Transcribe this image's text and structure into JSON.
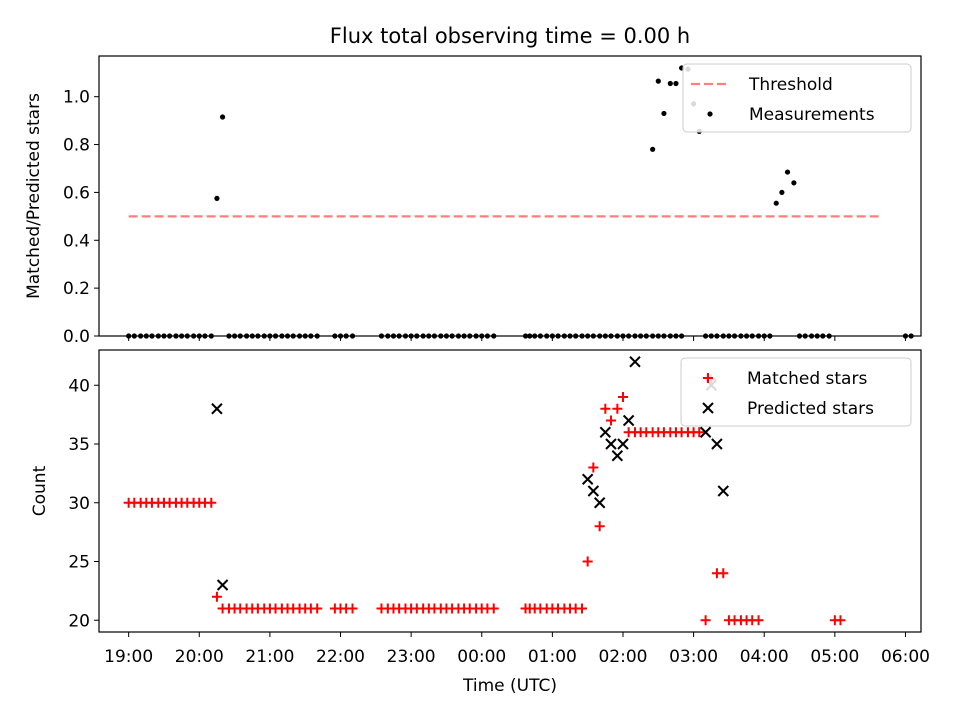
{
  "figure": {
    "title": "Flux total observing time = 0.00 h"
  },
  "chart_data": [
    {
      "type": "scatter",
      "ylabel": "Matched/Predicted stars",
      "xlabel": "",
      "x_ticks": [
        "19:00",
        "20:00",
        "21:00",
        "22:00",
        "23:00",
        "00:00",
        "01:00",
        "02:00",
        "03:00",
        "04:00",
        "05:00",
        "06:00"
      ],
      "xlim": [
        18.58,
        30.22
      ],
      "ylim": [
        0,
        1.17
      ],
      "y_ticks": [
        "0.0",
        "0.2",
        "0.4",
        "0.6",
        "0.8",
        "1.0"
      ],
      "legend": {
        "placement": "top-right",
        "entries": [
          "Threshold",
          "Measurements"
        ]
      },
      "threshold": {
        "name": "Threshold",
        "y": 0.5,
        "x_range": [
          19.0,
          29.67
        ],
        "color": "#ff7f7f",
        "style": "dashed"
      },
      "series": [
        {
          "name": "Measurements",
          "color": "#000000",
          "marker": "dot",
          "points": [
            [
              19.0,
              0
            ],
            [
              19.08,
              0
            ],
            [
              19.17,
              0
            ],
            [
              19.25,
              0
            ],
            [
              19.33,
              0
            ],
            [
              19.42,
              0
            ],
            [
              19.5,
              0
            ],
            [
              19.58,
              0
            ],
            [
              19.67,
              0
            ],
            [
              19.75,
              0
            ],
            [
              19.83,
              0
            ],
            [
              19.92,
              0
            ],
            [
              20.0,
              0
            ],
            [
              20.08,
              0
            ],
            [
              20.17,
              0
            ],
            [
              20.25,
              0.575
            ],
            [
              20.33,
              0.915
            ],
            [
              20.42,
              0
            ],
            [
              20.5,
              0
            ],
            [
              20.58,
              0
            ],
            [
              20.67,
              0
            ],
            [
              20.75,
              0
            ],
            [
              20.83,
              0
            ],
            [
              20.92,
              0
            ],
            [
              21.0,
              0
            ],
            [
              21.08,
              0
            ],
            [
              21.17,
              0
            ],
            [
              21.25,
              0
            ],
            [
              21.33,
              0
            ],
            [
              21.42,
              0
            ],
            [
              21.5,
              0
            ],
            [
              21.58,
              0
            ],
            [
              21.67,
              0
            ],
            [
              21.92,
              0
            ],
            [
              22.0,
              0
            ],
            [
              22.08,
              0
            ],
            [
              22.17,
              0
            ],
            [
              22.58,
              0
            ],
            [
              22.67,
              0
            ],
            [
              22.75,
              0
            ],
            [
              22.83,
              0
            ],
            [
              22.92,
              0
            ],
            [
              23.0,
              0
            ],
            [
              23.08,
              0
            ],
            [
              23.17,
              0
            ],
            [
              23.25,
              0
            ],
            [
              23.33,
              0
            ],
            [
              23.42,
              0
            ],
            [
              23.5,
              0
            ],
            [
              23.58,
              0
            ],
            [
              23.67,
              0
            ],
            [
              23.75,
              0
            ],
            [
              23.83,
              0
            ],
            [
              23.92,
              0
            ],
            [
              24.0,
              0
            ],
            [
              24.08,
              0
            ],
            [
              24.17,
              0
            ],
            [
              24.62,
              0
            ],
            [
              24.68,
              0
            ],
            [
              24.75,
              0
            ],
            [
              24.83,
              0
            ],
            [
              24.92,
              0
            ],
            [
              25.0,
              0
            ],
            [
              25.08,
              0
            ],
            [
              25.17,
              0
            ],
            [
              25.25,
              0
            ],
            [
              25.33,
              0
            ],
            [
              25.42,
              0
            ],
            [
              25.5,
              0
            ],
            [
              25.58,
              0
            ],
            [
              25.67,
              0
            ],
            [
              25.75,
              0
            ],
            [
              25.83,
              0
            ],
            [
              25.92,
              0
            ],
            [
              26.0,
              0
            ],
            [
              26.08,
              0
            ],
            [
              26.17,
              0
            ],
            [
              26.25,
              0
            ],
            [
              26.33,
              0
            ],
            [
              26.42,
              0
            ],
            [
              26.5,
              0
            ],
            [
              26.58,
              0
            ],
            [
              26.67,
              0
            ],
            [
              26.75,
              0
            ],
            [
              26.83,
              0
            ],
            [
              26.42,
              0.78
            ],
            [
              26.5,
              1.065
            ],
            [
              26.58,
              0.93
            ],
            [
              26.67,
              1.055
            ],
            [
              26.75,
              1.055
            ],
            [
              26.83,
              1.12
            ],
            [
              26.92,
              1.115
            ],
            [
              27.0,
              0.97
            ],
            [
              27.08,
              0.855
            ],
            [
              27.17,
              0
            ],
            [
              27.25,
              0
            ],
            [
              27.33,
              0
            ],
            [
              27.42,
              0
            ],
            [
              27.5,
              0
            ],
            [
              27.58,
              0
            ],
            [
              27.67,
              0
            ],
            [
              27.75,
              0
            ],
            [
              27.83,
              0
            ],
            [
              27.92,
              0
            ],
            [
              28.0,
              0
            ],
            [
              28.08,
              0
            ],
            [
              28.17,
              0.555
            ],
            [
              28.25,
              0.6
            ],
            [
              28.33,
              0.685
            ],
            [
              28.42,
              0.64
            ],
            [
              28.5,
              0
            ],
            [
              28.58,
              0
            ],
            [
              28.67,
              0
            ],
            [
              28.75,
              0
            ],
            [
              28.83,
              0
            ],
            [
              28.92,
              0
            ],
            [
              30.0,
              0
            ],
            [
              30.08,
              0
            ]
          ]
        }
      ]
    },
    {
      "type": "scatter",
      "ylabel": "Count",
      "xlabel": "Time (UTC)",
      "x_ticks": [
        "19:00",
        "20:00",
        "21:00",
        "22:00",
        "23:00",
        "00:00",
        "01:00",
        "02:00",
        "03:00",
        "04:00",
        "05:00",
        "06:00"
      ],
      "xlim": [
        18.58,
        30.22
      ],
      "ylim": [
        19.0,
        43.0
      ],
      "y_ticks": [
        "20",
        "25",
        "30",
        "35",
        "40"
      ],
      "legend": {
        "placement": "top-right",
        "entries": [
          "Matched stars",
          "Predicted stars"
        ]
      },
      "series": [
        {
          "name": "Matched stars",
          "color": "#ff0000",
          "marker": "plus",
          "points": [
            [
              19.0,
              30
            ],
            [
              19.08,
              30
            ],
            [
              19.17,
              30
            ],
            [
              19.25,
              30
            ],
            [
              19.33,
              30
            ],
            [
              19.42,
              30
            ],
            [
              19.5,
              30
            ],
            [
              19.58,
              30
            ],
            [
              19.67,
              30
            ],
            [
              19.75,
              30
            ],
            [
              19.83,
              30
            ],
            [
              19.92,
              30
            ],
            [
              20.0,
              30
            ],
            [
              20.08,
              30
            ],
            [
              20.17,
              30
            ],
            [
              20.25,
              22
            ],
            [
              20.33,
              21
            ],
            [
              20.42,
              21
            ],
            [
              20.5,
              21
            ],
            [
              20.58,
              21
            ],
            [
              20.67,
              21
            ],
            [
              20.75,
              21
            ],
            [
              20.83,
              21
            ],
            [
              20.92,
              21
            ],
            [
              21.0,
              21
            ],
            [
              21.08,
              21
            ],
            [
              21.17,
              21
            ],
            [
              21.25,
              21
            ],
            [
              21.33,
              21
            ],
            [
              21.42,
              21
            ],
            [
              21.5,
              21
            ],
            [
              21.58,
              21
            ],
            [
              21.67,
              21
            ],
            [
              21.92,
              21
            ],
            [
              22.0,
              21
            ],
            [
              22.08,
              21
            ],
            [
              22.17,
              21
            ],
            [
              22.58,
              21
            ],
            [
              22.67,
              21
            ],
            [
              22.75,
              21
            ],
            [
              22.83,
              21
            ],
            [
              22.92,
              21
            ],
            [
              23.0,
              21
            ],
            [
              23.08,
              21
            ],
            [
              23.17,
              21
            ],
            [
              23.25,
              21
            ],
            [
              23.33,
              21
            ],
            [
              23.42,
              21
            ],
            [
              23.5,
              21
            ],
            [
              23.58,
              21
            ],
            [
              23.67,
              21
            ],
            [
              23.75,
              21
            ],
            [
              23.83,
              21
            ],
            [
              23.92,
              21
            ],
            [
              24.0,
              21
            ],
            [
              24.08,
              21
            ],
            [
              24.17,
              21
            ],
            [
              24.62,
              21
            ],
            [
              24.68,
              21
            ],
            [
              24.75,
              21
            ],
            [
              24.83,
              21
            ],
            [
              24.92,
              21
            ],
            [
              25.0,
              21
            ],
            [
              25.08,
              21
            ],
            [
              25.17,
              21
            ],
            [
              25.25,
              21
            ],
            [
              25.33,
              21
            ],
            [
              25.42,
              21
            ],
            [
              25.5,
              25
            ],
            [
              25.58,
              33
            ],
            [
              25.67,
              28
            ],
            [
              25.75,
              38
            ],
            [
              25.83,
              37
            ],
            [
              25.92,
              38
            ],
            [
              26.0,
              39
            ],
            [
              26.08,
              36
            ],
            [
              26.17,
              36
            ],
            [
              26.25,
              36
            ],
            [
              26.33,
              36
            ],
            [
              26.42,
              36
            ],
            [
              26.5,
              36
            ],
            [
              26.58,
              36
            ],
            [
              26.67,
              36
            ],
            [
              26.75,
              36
            ],
            [
              26.83,
              36
            ],
            [
              26.92,
              36
            ],
            [
              27.0,
              36
            ],
            [
              27.08,
              36
            ],
            [
              27.17,
              20
            ],
            [
              27.25,
              40.5
            ],
            [
              27.33,
              24
            ],
            [
              27.42,
              24
            ],
            [
              27.5,
              20
            ],
            [
              27.58,
              20
            ],
            [
              27.67,
              20
            ],
            [
              27.75,
              20
            ],
            [
              27.83,
              20
            ],
            [
              27.92,
              20
            ],
            [
              29.0,
              20
            ],
            [
              29.08,
              20
            ]
          ]
        },
        {
          "name": "Predicted stars",
          "color": "#000000",
          "marker": "x",
          "points": [
            [
              20.25,
              38
            ],
            [
              20.33,
              23
            ],
            [
              25.5,
              32
            ],
            [
              25.58,
              31
            ],
            [
              25.67,
              30
            ],
            [
              25.75,
              36
            ],
            [
              25.83,
              35
            ],
            [
              25.92,
              34
            ],
            [
              26.0,
              35
            ],
            [
              26.08,
              37
            ],
            [
              26.17,
              42
            ],
            [
              27.17,
              36
            ],
            [
              27.25,
              40
            ],
            [
              27.33,
              35
            ],
            [
              27.42,
              31
            ]
          ]
        }
      ]
    }
  ]
}
